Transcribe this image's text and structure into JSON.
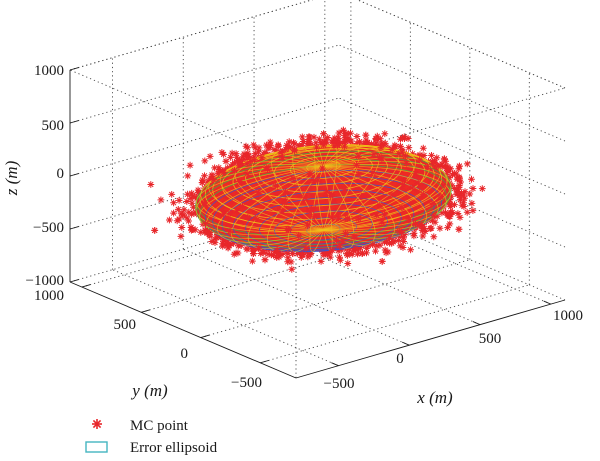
{
  "chart_data": {
    "type": "scatter3d",
    "title": "",
    "xlabel": "x (m)",
    "ylabel": "y (m)",
    "zlabel": "z (m)",
    "xlim": [
      -800,
      1100
    ],
    "ylim": [
      -800,
      1100
    ],
    "zlim": [
      -1000,
      1000
    ],
    "x_ticks": [
      "−500",
      "0",
      "500",
      "1000"
    ],
    "y_ticks": [
      "1000",
      "500",
      "0",
      "−500"
    ],
    "z_ticks": [
      "1000",
      "500",
      "0",
      "−500",
      "−1000"
    ],
    "grid": true,
    "legend_position": "bottom-left",
    "series": [
      {
        "name": "MC point",
        "kind": "scatter",
        "marker": "asterisk",
        "color": "#e8262a",
        "distribution": "dense cloud filling the error ellipsoid with outliers",
        "center": [
          150,
          100,
          -100
        ],
        "semi_axes": [
          900,
          700,
          330
        ]
      },
      {
        "name": "Error ellipsoid",
        "kind": "mesh",
        "color_top": "#f0c419",
        "color_side": "#3cb043",
        "color_bottom": "#3b55c8",
        "center": [
          150,
          100,
          -100
        ],
        "semi_axes": [
          750,
          600,
          300
        ]
      }
    ]
  },
  "legend": {
    "mc_label": "MC point",
    "ellipsoid_label": "Error ellipsoid",
    "ellipsoid_swatch_color": "#45b5c0"
  }
}
